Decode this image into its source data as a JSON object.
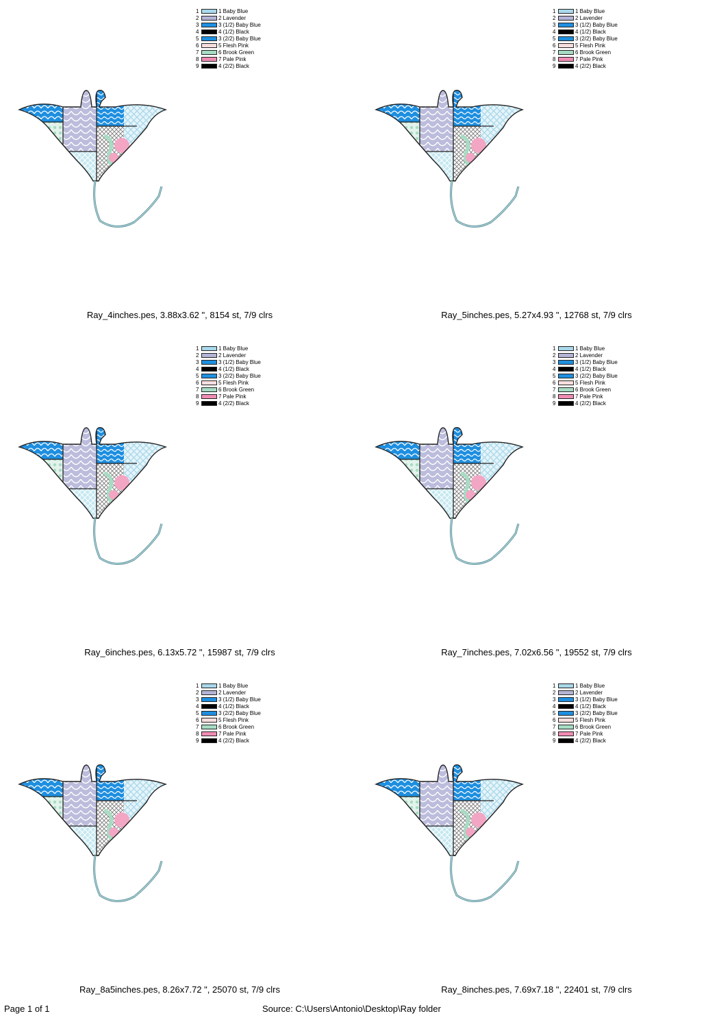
{
  "colors": [
    {
      "num": "1",
      "label": "1 Baby Blue",
      "hex": "#a8d8ea"
    },
    {
      "num": "2",
      "label": "2 Lavender",
      "hex": "#b4b4d6"
    },
    {
      "num": "3",
      "label": "3 (1/2) Baby Blue",
      "hex": "#1e8fe0"
    },
    {
      "num": "4",
      "label": "4 (1/2) Black",
      "hex": "#000000"
    },
    {
      "num": "5",
      "label": "3 (2/2) Baby Blue",
      "hex": "#1e8fe0"
    },
    {
      "num": "6",
      "label": "5 Flesh Pink",
      "hex": "#f7dede"
    },
    {
      "num": "7",
      "label": "6 Brook Green",
      "hex": "#a6dcc3"
    },
    {
      "num": "8",
      "label": "7 Pale Pink",
      "hex": "#f08cb4"
    },
    {
      "num": "9",
      "label": "4 (2/2) Black",
      "hex": "#000000"
    }
  ],
  "designs": [
    {
      "caption": "Ray_4inches.pes, 3.88x3.62 \", 8154 st, 7/9 clrs"
    },
    {
      "caption": "Ray_5inches.pes, 5.27x4.93 \", 12768 st, 7/9 clrs"
    },
    {
      "caption": "Ray_6inches.pes, 6.13x5.72 \", 15987 st, 7/9 clrs"
    },
    {
      "caption": "Ray_7inches.pes, 7.02x6.56 \", 19552 st, 7/9 clrs"
    },
    {
      "caption": "Ray_8a5inches.pes, 8.26x7.72 \", 25070 st, 7/9 clrs"
    },
    {
      "caption": "Ray_8inches.pes, 7.69x7.18 \", 22401 st, 7/9 clrs"
    }
  ],
  "footer": {
    "page": "Page 1 of 1",
    "source": "Source: C:\\Users\\Antonio\\Desktop\\Ray folder"
  }
}
